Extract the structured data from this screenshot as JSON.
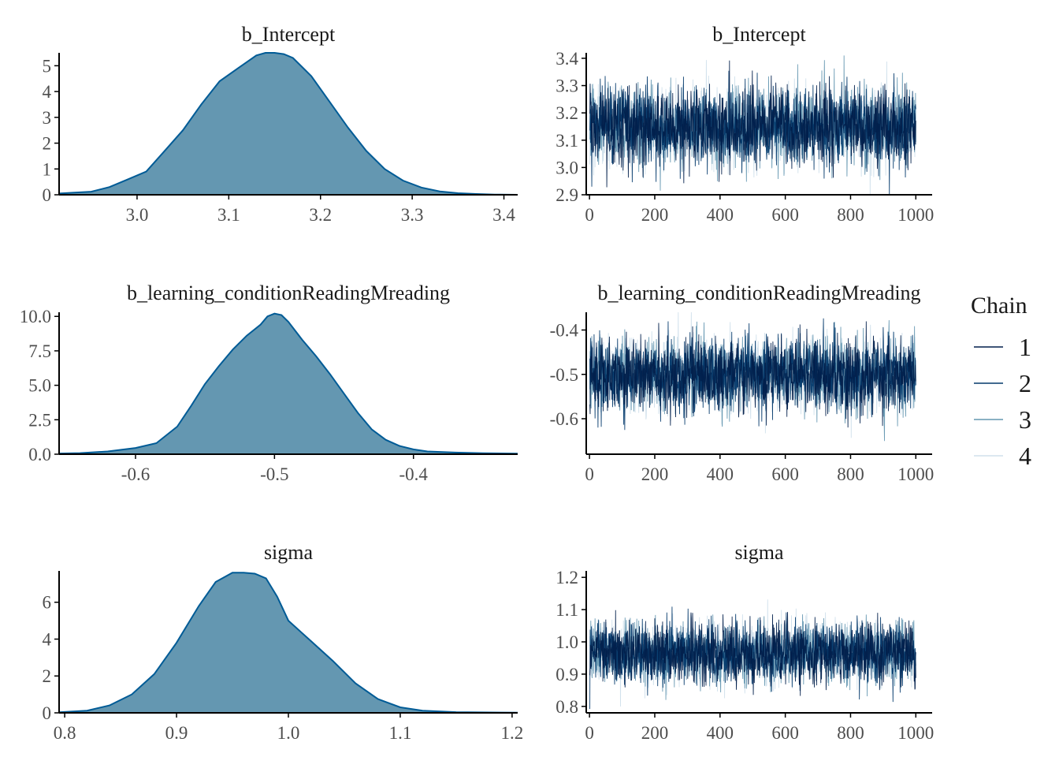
{
  "colors": {
    "density_fill": "#6497b1",
    "density_line": "#005b96",
    "chain_1": "#011f4b",
    "chain_2": "#03396c",
    "chain_3": "#6497b1",
    "chain_4": "#d1e1ec",
    "axis": "#000000",
    "tick_text": "#4d4d4d"
  },
  "legend": {
    "title": "Chain",
    "items": [
      {
        "label": "1",
        "color": "#011f4b"
      },
      {
        "label": "2",
        "color": "#03396c"
      },
      {
        "label": "3",
        "color": "#6497b1"
      },
      {
        "label": "4",
        "color": "#d1e1ec"
      }
    ],
    "position": "right"
  },
  "chart_data": [
    {
      "type": "area",
      "title": "b_Intercept",
      "xlim": [
        2.915,
        3.415
      ],
      "ylim": [
        0,
        5.5
      ],
      "x_ticks": [
        3.0,
        3.1,
        3.2,
        3.3,
        3.4
      ],
      "x_tick_labels": [
        "3.0",
        "3.1",
        "3.2",
        "3.3",
        "3.4"
      ],
      "y_ticks": [
        0,
        1,
        2,
        3,
        4,
        5
      ],
      "y_tick_labels": [
        "0",
        "1",
        "2",
        "3",
        "4",
        "5"
      ],
      "x": [
        2.915,
        2.93,
        2.95,
        2.97,
        2.99,
        3.01,
        3.03,
        3.05,
        3.07,
        3.09,
        3.11,
        3.13,
        3.14,
        3.15,
        3.16,
        3.17,
        3.19,
        3.21,
        3.23,
        3.25,
        3.27,
        3.29,
        3.31,
        3.33,
        3.35,
        3.37,
        3.39,
        3.415
      ],
      "y": [
        0.05,
        0.08,
        0.12,
        0.3,
        0.6,
        0.9,
        1.7,
        2.5,
        3.5,
        4.4,
        4.9,
        5.4,
        5.5,
        5.5,
        5.45,
        5.3,
        4.6,
        3.6,
        2.6,
        1.7,
        1.0,
        0.55,
        0.28,
        0.13,
        0.06,
        0.03,
        0.01,
        0.0
      ]
    },
    {
      "type": "line",
      "title": "b_Intercept",
      "xlim": [
        -10,
        1050
      ],
      "ylim": [
        2.9,
        3.42
      ],
      "x_ticks": [
        0,
        200,
        400,
        600,
        800,
        1000
      ],
      "x_tick_labels": [
        "0",
        "200",
        "400",
        "600",
        "800",
        "1000"
      ],
      "y_ticks": [
        2.9,
        3.0,
        3.1,
        3.2,
        3.3,
        3.4
      ],
      "y_tick_labels": [
        "2.9",
        "3.0",
        "3.1",
        "3.2",
        "3.3",
        "3.4"
      ],
      "iterations": 1000,
      "series": [
        {
          "name": "1",
          "mean": 3.15,
          "sd": 0.072
        },
        {
          "name": "2",
          "mean": 3.15,
          "sd": 0.072
        },
        {
          "name": "3",
          "mean": 3.15,
          "sd": 0.072
        },
        {
          "name": "4",
          "mean": 3.15,
          "sd": 0.072
        }
      ]
    },
    {
      "type": "area",
      "title": "b_learning_conditionReadingMreading",
      "xlim": [
        -0.655,
        -0.325
      ],
      "ylim": [
        0,
        10.3
      ],
      "x_ticks": [
        -0.6,
        -0.5,
        -0.4
      ],
      "x_tick_labels": [
        "-0.6",
        "-0.5",
        "-0.4"
      ],
      "y_ticks": [
        0,
        2.5,
        5.0,
        7.5,
        10.0
      ],
      "y_tick_labels": [
        "0.0",
        "2.5",
        "5.0",
        "7.5",
        "10.0"
      ],
      "x": [
        -0.655,
        -0.64,
        -0.62,
        -0.6,
        -0.585,
        -0.57,
        -0.56,
        -0.55,
        -0.54,
        -0.53,
        -0.52,
        -0.51,
        -0.505,
        -0.5,
        -0.495,
        -0.49,
        -0.48,
        -0.47,
        -0.46,
        -0.45,
        -0.44,
        -0.43,
        -0.42,
        -0.41,
        -0.4,
        -0.39,
        -0.37,
        -0.35,
        -0.325
      ],
      "y": [
        0.05,
        0.08,
        0.2,
        0.45,
        0.8,
        2.0,
        3.5,
        5.1,
        6.4,
        7.6,
        8.6,
        9.4,
        10.0,
        10.2,
        10.1,
        9.6,
        8.3,
        7.1,
        5.8,
        4.4,
        3.0,
        1.8,
        1.05,
        0.6,
        0.35,
        0.2,
        0.12,
        0.07,
        0.04
      ]
    },
    {
      "type": "line",
      "title": "b_learning_conditionReadingMreading",
      "xlim": [
        -10,
        1050
      ],
      "ylim": [
        -0.68,
        -0.36
      ],
      "x_ticks": [
        0,
        200,
        400,
        600,
        800,
        1000
      ],
      "x_tick_labels": [
        "0",
        "200",
        "400",
        "600",
        "800",
        "1000"
      ],
      "y_ticks": [
        -0.6,
        -0.5,
        -0.4
      ],
      "y_tick_labels": [
        "-0.6",
        "-0.5",
        "-0.4"
      ],
      "iterations": 1000,
      "series": [
        {
          "name": "1",
          "mean": -0.5,
          "sd": 0.042
        },
        {
          "name": "2",
          "mean": -0.5,
          "sd": 0.042
        },
        {
          "name": "3",
          "mean": -0.5,
          "sd": 0.042
        },
        {
          "name": "4",
          "mean": -0.5,
          "sd": 0.042
        }
      ]
    },
    {
      "type": "area",
      "title": "sigma",
      "xlim": [
        0.795,
        1.205
      ],
      "ylim": [
        0,
        7.7
      ],
      "x_ticks": [
        0.8,
        0.9,
        1.0,
        1.1,
        1.2
      ],
      "x_tick_labels": [
        "0.8",
        "0.9",
        "1.0",
        "1.1",
        "1.2"
      ],
      "y_ticks": [
        0,
        2,
        4,
        6
      ],
      "y_tick_labels": [
        "0",
        "2",
        "4",
        "6"
      ],
      "x": [
        0.795,
        0.82,
        0.84,
        0.86,
        0.88,
        0.9,
        0.92,
        0.935,
        0.95,
        0.96,
        0.97,
        0.98,
        0.99,
        1.0,
        1.02,
        1.04,
        1.06,
        1.08,
        1.1,
        1.12,
        1.15,
        1.205
      ],
      "y": [
        0.03,
        0.12,
        0.4,
        1.0,
        2.1,
        3.8,
        5.8,
        7.1,
        7.6,
        7.6,
        7.55,
        7.3,
        6.3,
        5.0,
        3.9,
        2.8,
        1.6,
        0.75,
        0.3,
        0.12,
        0.04,
        0.01
      ]
    },
    {
      "type": "line",
      "title": "sigma",
      "xlim": [
        -10,
        1050
      ],
      "ylim": [
        0.78,
        1.22
      ],
      "x_ticks": [
        0,
        200,
        400,
        600,
        800,
        1000
      ],
      "x_tick_labels": [
        "0",
        "200",
        "400",
        "600",
        "800",
        "1000"
      ],
      "y_ticks": [
        0.8,
        0.9,
        1.0,
        1.1,
        1.2
      ],
      "y_tick_labels": [
        "0.8",
        "0.9",
        "1.0",
        "1.1",
        "1.2"
      ],
      "iterations": 1000,
      "series": [
        {
          "name": "1",
          "mean": 0.965,
          "sd": 0.048
        },
        {
          "name": "2",
          "mean": 0.965,
          "sd": 0.048
        },
        {
          "name": "3",
          "mean": 0.965,
          "sd": 0.048
        },
        {
          "name": "4",
          "mean": 0.965,
          "sd": 0.048
        }
      ]
    }
  ]
}
